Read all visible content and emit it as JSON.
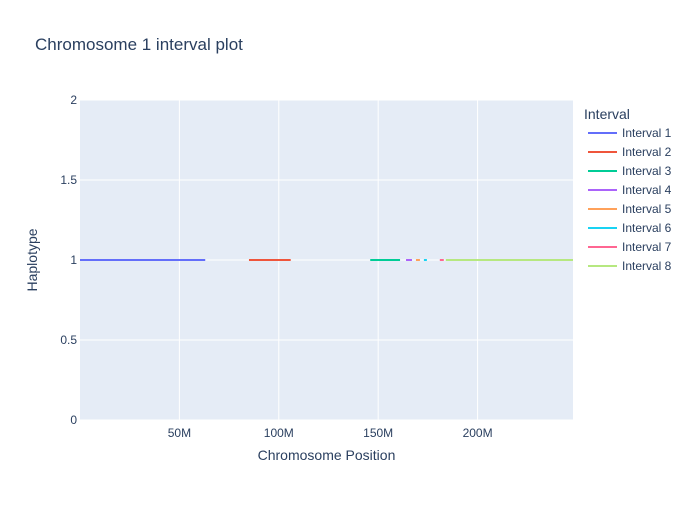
{
  "chart_data": {
    "type": "line",
    "title": "Chromosome 1 interval plot",
    "xlabel": "Chromosome Position",
    "ylabel": "Haplotype",
    "xlim": [
      0,
      248000000
    ],
    "ylim": [
      0,
      2
    ],
    "x_ticks": [
      50000000,
      100000000,
      150000000,
      200000000
    ],
    "x_tick_labels": [
      "50M",
      "100M",
      "150M",
      "200M"
    ],
    "y_ticks": [
      0,
      0.5,
      1,
      1.5,
      2
    ],
    "y_tick_labels": [
      "0",
      "0.5",
      "1",
      "1.5",
      "2"
    ],
    "grid": true,
    "plot_background": "#e5ecf6",
    "legend": {
      "title": "Interval",
      "placement": "right"
    },
    "series": [
      {
        "name": "Interval 1",
        "color": "#636efa",
        "x": [
          0,
          63000000
        ],
        "y": [
          1,
          1
        ]
      },
      {
        "name": "Interval 2",
        "color": "#ef553b",
        "x": [
          85000000,
          106000000
        ],
        "y": [
          1,
          1
        ]
      },
      {
        "name": "Interval 3",
        "color": "#00cc96",
        "x": [
          146000000,
          161000000
        ],
        "y": [
          1,
          1
        ]
      },
      {
        "name": "Interval 4",
        "color": "#ab63fa",
        "x": [
          164000000,
          167000000
        ],
        "y": [
          1,
          1
        ]
      },
      {
        "name": "Interval 5",
        "color": "#ffa15a",
        "x": [
          169000000,
          171000000
        ],
        "y": [
          1,
          1
        ]
      },
      {
        "name": "Interval 6",
        "color": "#19d3f3",
        "x": [
          173000000,
          174500000
        ],
        "y": [
          1,
          1
        ]
      },
      {
        "name": "Interval 7",
        "color": "#ff6692",
        "x": [
          181000000,
          183000000
        ],
        "y": [
          1,
          1
        ]
      },
      {
        "name": "Interval 8",
        "color": "#b6e880",
        "x": [
          184000000,
          248000000
        ],
        "y": [
          1,
          1
        ]
      }
    ]
  }
}
